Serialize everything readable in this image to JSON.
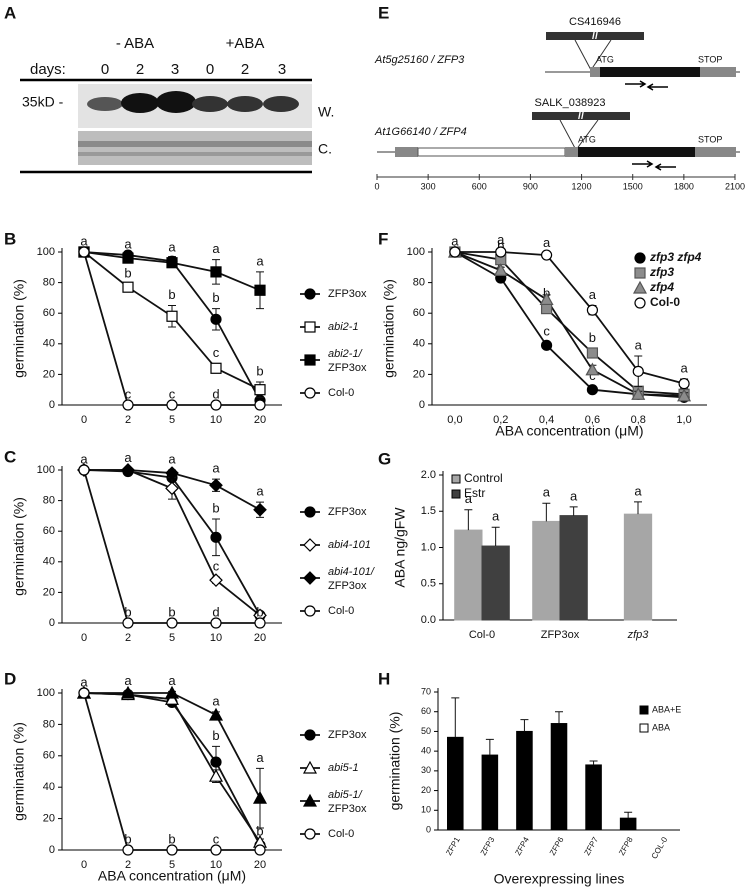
{
  "panel_a": {
    "label": "A",
    "conditions": [
      "- ABA",
      "+ABA"
    ],
    "days_label": "days:",
    "days": [
      "0",
      "2",
      "3",
      "0",
      "2",
      "3"
    ],
    "size_marker": "35kD -",
    "rows": [
      "W.",
      "C."
    ]
  },
  "panel_e": {
    "label": "E",
    "genes": [
      {
        "name": "At5g25160 / ZFP3",
        "insertion": "CS416946",
        "start": "ATG",
        "stop": "STOP"
      },
      {
        "name": "At1G66140 / ZFP4",
        "insertion": "SALK_038923",
        "start": "ATG",
        "stop": "STOP"
      }
    ],
    "scale": [
      0,
      300,
      600,
      900,
      1200,
      1500,
      1800,
      2100
    ]
  },
  "chart_data": [
    {
      "panel": "B",
      "type": "line",
      "ylabel": "germination (%)",
      "categories": [
        "0",
        "2",
        "5",
        "10",
        "20"
      ],
      "ylim": [
        0,
        100
      ],
      "yticks": [
        0,
        20,
        40,
        60,
        80,
        100
      ],
      "series": [
        {
          "name": "ZFP3ox",
          "marker": "circle",
          "color": "#000000",
          "italic": false,
          "values": [
            100,
            98,
            94,
            56,
            3
          ],
          "errors": [
            0,
            2,
            3,
            7,
            2
          ],
          "letters": [
            null,
            null,
            null,
            "b",
            null
          ]
        },
        {
          "name": "abi2-1",
          "marker": "square",
          "color": "#ffffff",
          "italic": true,
          "values": [
            100,
            77,
            58,
            24,
            10
          ],
          "errors": [
            0,
            2,
            7,
            3,
            5
          ],
          "letters": [
            null,
            "b",
            "b",
            "c",
            "b"
          ]
        },
        {
          "name": "abi2-1/ ZFP3ox",
          "marker": "square",
          "color": "#000000",
          "italic": true,
          "values": [
            100,
            96,
            93,
            87,
            75
          ],
          "errors": [
            0,
            2,
            3,
            8,
            12
          ],
          "letters": [
            "a",
            "a",
            "a",
            "a",
            "a"
          ]
        },
        {
          "name": "Col-0",
          "marker": "circle",
          "color": "#ffffff",
          "italic": false,
          "values": [
            100,
            0,
            0,
            0,
            0
          ],
          "errors": [
            0,
            0,
            0,
            0,
            0
          ],
          "letters": [
            null,
            "c",
            "c",
            "d",
            null
          ]
        }
      ]
    },
    {
      "panel": "C",
      "type": "line",
      "ylabel": "germination (%)",
      "categories": [
        "0",
        "2",
        "5",
        "10",
        "20"
      ],
      "ylim": [
        0,
        100
      ],
      "yticks": [
        0,
        20,
        40,
        60,
        80,
        100
      ],
      "series": [
        {
          "name": "ZFP3ox",
          "marker": "circle",
          "color": "#000000",
          "italic": false,
          "values": [
            100,
            99,
            95,
            56,
            5
          ],
          "errors": [
            0,
            1,
            2,
            12,
            2
          ],
          "letters": [
            null,
            null,
            null,
            "b",
            null
          ]
        },
        {
          "name": "abi4-101",
          "marker": "diamond",
          "color": "#ffffff",
          "italic": true,
          "values": [
            100,
            100,
            88,
            28,
            5
          ],
          "errors": [
            0,
            0,
            7,
            2,
            0
          ],
          "letters": [
            null,
            null,
            null,
            "c",
            null
          ]
        },
        {
          "name": "abi4-101/ ZFP3ox",
          "marker": "diamond",
          "color": "#000000",
          "italic": true,
          "values": [
            100,
            100,
            98,
            90,
            74
          ],
          "errors": [
            0,
            1,
            2,
            4,
            5
          ],
          "letters": [
            "a",
            "a",
            "a",
            "a",
            "a"
          ]
        },
        {
          "name": "Col-0",
          "marker": "circle",
          "color": "#ffffff",
          "italic": false,
          "values": [
            100,
            0,
            0,
            0,
            0
          ],
          "errors": [
            0,
            0,
            0,
            0,
            0
          ],
          "letters": [
            null,
            "b",
            "b",
            "d",
            "b"
          ]
        }
      ]
    },
    {
      "panel": "D",
      "type": "line",
      "ylabel": "germination (%)",
      "xlabel": "ABA concentration (μM)",
      "categories": [
        "0",
        "2",
        "5",
        "10",
        "20"
      ],
      "ylim": [
        0,
        100
      ],
      "yticks": [
        0,
        20,
        40,
        60,
        80,
        100
      ],
      "series": [
        {
          "name": "ZFP3ox",
          "marker": "circle",
          "color": "#000000",
          "italic": false,
          "values": [
            100,
            99,
            94,
            56,
            3
          ],
          "errors": [
            0,
            1,
            2,
            10,
            2
          ],
          "letters": [
            null,
            null,
            null,
            "b",
            "b"
          ]
        },
        {
          "name": "abi5-1",
          "marker": "triangle",
          "color": "#ffffff",
          "italic": true,
          "values": [
            100,
            99,
            96,
            47,
            5
          ],
          "errors": [
            0,
            1,
            2,
            4,
            2
          ],
          "letters": [
            null,
            null,
            null,
            null,
            null
          ]
        },
        {
          "name": "abi5-1/ ZFP3ox",
          "marker": "triangle",
          "color": "#000000",
          "italic": true,
          "values": [
            100,
            100,
            100,
            86,
            33
          ],
          "errors": [
            0,
            1,
            1,
            2,
            19
          ],
          "letters": [
            "a",
            "a",
            "a",
            "a",
            "a"
          ]
        },
        {
          "name": "Col-0",
          "marker": "circle",
          "color": "#ffffff",
          "italic": false,
          "values": [
            100,
            0,
            0,
            0,
            0
          ],
          "errors": [
            0,
            0,
            0,
            0,
            0
          ],
          "letters": [
            null,
            "b",
            "b",
            "c",
            null
          ]
        }
      ]
    },
    {
      "panel": "F",
      "type": "line",
      "ylabel": "germination (%)",
      "xlabel": "ABA concentration (μM)",
      "categories": [
        "0,0",
        "0,2",
        "0,4",
        "0,6",
        "0,8",
        "1,0"
      ],
      "ylim": [
        0,
        100
      ],
      "yticks": [
        0,
        20,
        40,
        60,
        80,
        100
      ],
      "series": [
        {
          "name": "zfp3 zfp4",
          "marker": "circle",
          "color": "#000000",
          "italic": true,
          "values": [
            100,
            83,
            39,
            10,
            7,
            5
          ],
          "errors": [
            0,
            2,
            2,
            2,
            1,
            1
          ],
          "letters": [
            null,
            "c",
            "c",
            "c",
            null,
            "b"
          ]
        },
        {
          "name": "zfp3",
          "marker": "square",
          "color": "#8c8c8c",
          "italic": true,
          "values": [
            100,
            95,
            63,
            34,
            9,
            7
          ],
          "errors": [
            0,
            2,
            3,
            3,
            2,
            2
          ],
          "letters": [
            null,
            "b",
            "b",
            "b",
            null,
            null
          ]
        },
        {
          "name": "zfp4",
          "marker": "triangle",
          "color": "#8c8c8c",
          "italic": true,
          "values": [
            100,
            88,
            69,
            23,
            7,
            6
          ],
          "errors": [
            0,
            2,
            3,
            3,
            2,
            2
          ],
          "letters": [
            null,
            null,
            null,
            null,
            null,
            null
          ]
        },
        {
          "name": "Col-0",
          "marker": "circle",
          "color": "#ffffff",
          "italic": false,
          "values": [
            100,
            100,
            98,
            62,
            22,
            14
          ],
          "errors": [
            0,
            1,
            1,
            3,
            10,
            3
          ],
          "letters": [
            "a",
            "a",
            "a",
            "a",
            "a",
            "a"
          ]
        }
      ]
    },
    {
      "panel": "G",
      "type": "bar",
      "ylabel": "ABA ng/gFW",
      "categories": [
        "Col-0",
        "ZFP3ox",
        "zfp3"
      ],
      "ylim": [
        0,
        2
      ],
      "yticks": [
        {
          "value": 0,
          "label": "0.0"
        },
        {
          "value": 0.5,
          "label": "0.5"
        },
        {
          "value": 1,
          "label": "1.0"
        },
        {
          "value": 1.5,
          "label": "1.5"
        },
        {
          "value": 2,
          "label": "2.0"
        }
      ],
      "series": [
        {
          "name": "Control",
          "color": "#a6a6a6",
          "values": [
            1.24,
            1.36,
            1.46
          ],
          "errors": [
            0.28,
            0.25,
            0.17
          ],
          "letters": [
            "a",
            "a",
            "a"
          ]
        },
        {
          "name": "Estr",
          "color": "#404040",
          "values": [
            1.02,
            1.44,
            null
          ],
          "errors": [
            0.26,
            0.12,
            null
          ],
          "letters": [
            "a",
            "a",
            null
          ]
        }
      ]
    },
    {
      "panel": "H",
      "type": "bar",
      "ylabel": "germination (%)",
      "xlabel": "Overexpressing lines",
      "categories": [
        "ZFP1",
        "ZFP3",
        "ZFP4",
        "ZFP6",
        "ZFP7",
        "ZFP8",
        "COL-0"
      ],
      "ylim": [
        0,
        70
      ],
      "yticks": [
        0,
        10,
        20,
        30,
        40,
        50,
        60,
        70
      ],
      "series": [
        {
          "name": "ABA+E",
          "color": "#000000",
          "values": [
            47,
            38,
            50,
            54,
            33,
            6,
            0
          ],
          "errors": [
            20,
            8,
            6,
            6,
            2,
            3,
            0
          ]
        },
        {
          "name": "ABA",
          "color": "#ffffff",
          "values": [
            null,
            null,
            null,
            null,
            null,
            null,
            null
          ]
        }
      ]
    }
  ]
}
